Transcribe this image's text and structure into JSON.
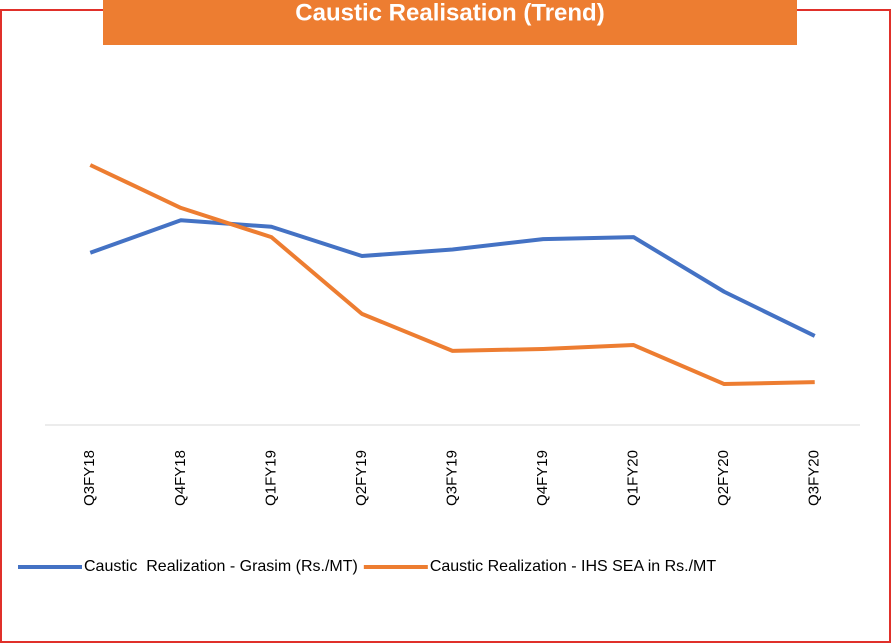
{
  "chart_data": {
    "type": "line",
    "title": "Caustic Realisation (Trend)",
    "categories": [
      "Q3FY18",
      "Q4FY18",
      "Q1FY19",
      "Q2FY19",
      "Q3FY19",
      "Q4FY19",
      "Q1FY20",
      "Q2FY20",
      "Q3FY20"
    ],
    "series": [
      {
        "name": "Caustic  Realization - Grasim (Rs./MT)",
        "color": "#4472c4",
        "values": [
          26500,
          31500,
          30500,
          26000,
          27000,
          28600,
          28900,
          20500,
          13700
        ]
      },
      {
        "name": "Caustic Realization - IHS SEA in Rs./MT",
        "color": "#ed7d31",
        "values": [
          40000,
          33400,
          28900,
          17100,
          11400,
          11700,
          12300,
          6300,
          6600
        ]
      }
    ],
    "ylim": [
      0,
      50000
    ],
    "legend": "bottom"
  }
}
